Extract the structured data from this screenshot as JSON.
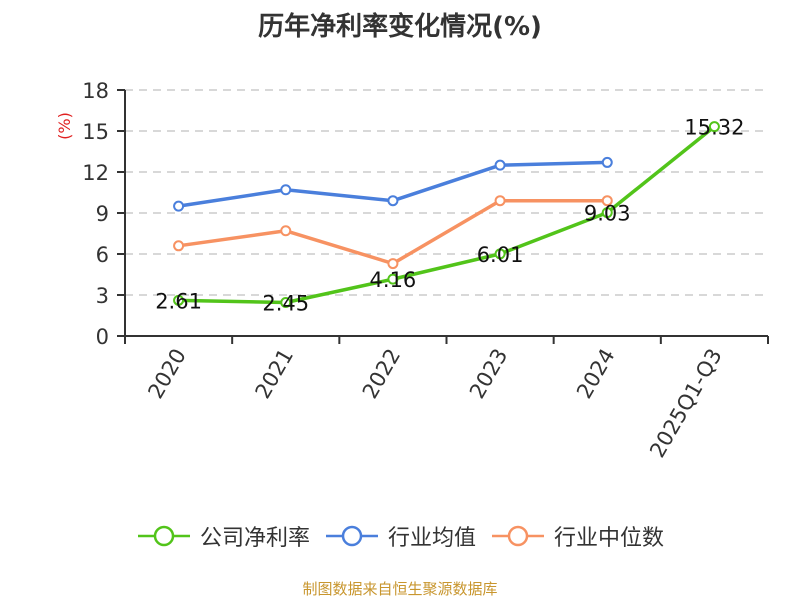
{
  "title": "历年净利率变化情况(%)",
  "source": "制图数据来自恒生聚源数据库",
  "colors": {
    "company": "#52c41a",
    "industry_avg": "#4a7fdc",
    "industry_median": "#f79262",
    "unit_label": "#e02020",
    "axis": "#333333",
    "grid": "#cccccc",
    "source": "#c8962e"
  },
  "legend": [
    {
      "label": "公司净利率",
      "color": "#52c41a"
    },
    {
      "label": "行业均值",
      "color": "#4a7fdc"
    },
    {
      "label": "行业中位数",
      "color": "#f79262"
    }
  ],
  "chart_data": {
    "type": "line",
    "title": "历年净利率变化情况(%)",
    "xlabel": "",
    "ylabel": "(%)",
    "ylim": [
      0,
      18
    ],
    "yticks": [
      0,
      3,
      6,
      9,
      12,
      15,
      18
    ],
    "grid": true,
    "legend_position": "bottom",
    "categories": [
      "2020",
      "2021",
      "2022",
      "2023",
      "2024",
      "2025Q1-Q3"
    ],
    "series": [
      {
        "name": "公司净利率",
        "values": [
          2.61,
          2.45,
          4.16,
          6.01,
          9.03,
          15.32
        ],
        "labels_shown": true
      },
      {
        "name": "行业均值",
        "values": [
          9.5,
          10.7,
          9.9,
          12.5,
          12.7,
          null
        ],
        "labels_shown": false
      },
      {
        "name": "行业中位数",
        "values": [
          6.6,
          7.7,
          5.3,
          9.9,
          9.9,
          null
        ],
        "labels_shown": false
      }
    ]
  }
}
